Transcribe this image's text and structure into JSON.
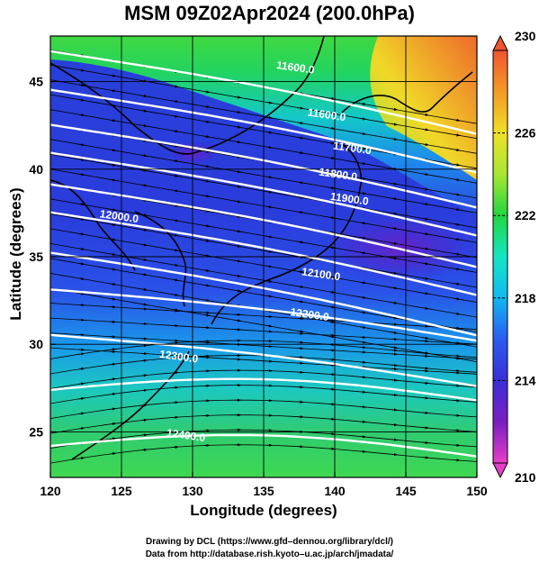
{
  "chart_data": {
    "type": "heatmap",
    "title": "MSM 09Z02Apr2024 (200.0hPa)",
    "xlabel": "Longitude (degrees)",
    "ylabel": "Latitude  (degrees)",
    "xlim": [
      120,
      150
    ],
    "ylim": [
      22.4,
      47.6
    ],
    "x_ticks": [
      120,
      125,
      130,
      135,
      140,
      145,
      150
    ],
    "y_ticks": [
      25,
      30,
      35,
      40,
      45
    ],
    "grid": true,
    "colorbar": {
      "range": [
        210,
        230
      ],
      "ticks": [
        210,
        214,
        218,
        222,
        226,
        230
      ],
      "colors": [
        "#e63ec8",
        "#7a1fc0",
        "#3a2fd6",
        "#2a5cf0",
        "#12b8f0",
        "#14e6c4",
        "#22d640",
        "#a8e632",
        "#f0e028",
        "#f49a26",
        "#ee5530"
      ],
      "position": "right"
    },
    "contours": [
      {
        "label": "11600.0",
        "lon": 137.2,
        "lat": 45.6
      },
      {
        "label": "11600.0",
        "lon": 139.4,
        "lat": 42.9
      },
      {
        "label": "11700.0",
        "lon": 141.2,
        "lat": 41.0
      },
      {
        "label": "11800.0",
        "lon": 140.2,
        "lat": 39.5
      },
      {
        "label": "11900.0",
        "lon": 141.0,
        "lat": 38.1
      },
      {
        "label": "12000.0",
        "lon": 124.8,
        "lat": 37.1
      },
      {
        "label": "12100.0",
        "lon": 139.0,
        "lat": 33.8
      },
      {
        "label": "12200.0",
        "lon": 138.2,
        "lat": 31.5
      },
      {
        "label": "12300.0",
        "lon": 129.0,
        "lat": 29.1
      },
      {
        "label": "12400.0",
        "lon": 129.5,
        "lat": 24.6
      }
    ]
  },
  "credits": {
    "line1": "Drawing by DCL (https://www.gfd–dennou.org/library/dcl/)",
    "line2": "Data from http://database.rish.kyoto–u.ac.jp/arch/jmadata/"
  }
}
